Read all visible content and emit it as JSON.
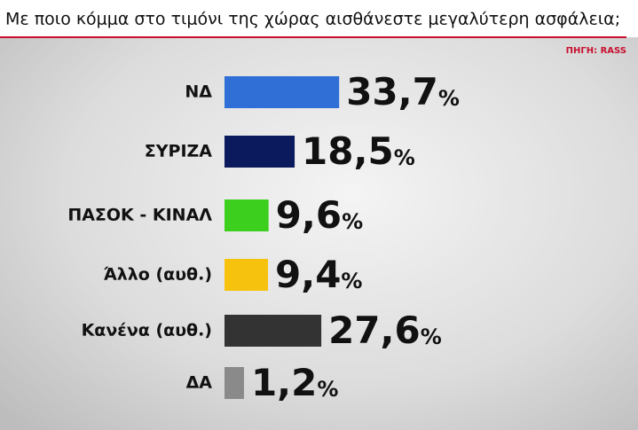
{
  "chart_data": {
    "type": "barh",
    "title": "Με ποιο κόμμα στο τιμόνι της χώρας αισθάνεστε μεγαλύτερη ασφάλεια;",
    "source": "ΠΗΓΗ: RASS",
    "categories": [
      "ΝΔ",
      "ΣΥΡΙΖΑ",
      "ΠΑΣΟΚ - ΚΙΝΑΛ",
      "Άλλο (αυθ.)",
      "Κανένα (αυθ.)",
      "ΔΑ"
    ],
    "values": [
      33.7,
      18.5,
      9.6,
      9.4,
      27.6,
      1.2
    ],
    "value_labels": [
      "33,7%",
      "18,5%",
      "9,6%",
      "9,4%",
      "27,6%",
      "1,2%"
    ],
    "colors": [
      "#2f6fd6",
      "#0b1a5c",
      "#3ccf1e",
      "#f7c20e",
      "#333333",
      "#8a8a8a"
    ]
  }
}
